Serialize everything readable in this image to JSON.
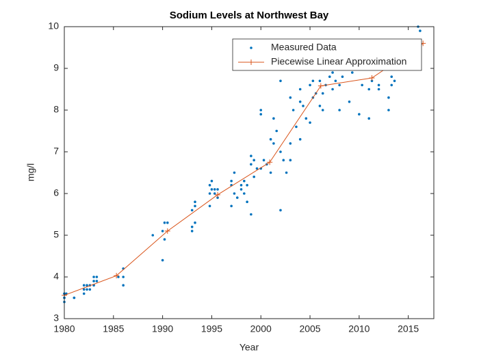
{
  "chart_data": {
    "type": "scatter",
    "title": "Sodium Levels at Northwest Bay",
    "xlabel": "Year",
    "ylabel": "mg/l",
    "xlim": [
      1980,
      2017.6
    ],
    "xticks": [
      1980,
      1985,
      1990,
      1995,
      2000,
      2005,
      2010,
      2015
    ],
    "ylim": [
      3,
      10
    ],
    "yticks": [
      3,
      4,
      5,
      6,
      7,
      8,
      9,
      10
    ],
    "legend": "top-right",
    "box": true,
    "series": [
      {
        "name": "Measured Data",
        "color": "#0072BD",
        "mode": "markers",
        "x": [
          1980,
          1980,
          1980,
          1980,
          1980,
          1980.2,
          1981,
          1981,
          1982,
          1982,
          1982,
          1982.3,
          1982.3,
          1982.6,
          1982.6,
          1983,
          1983,
          1983,
          1983.3,
          1983.3,
          1985.5,
          1986,
          1986,
          1986,
          1989,
          1990,
          1990,
          1990.2,
          1990.2,
          1990.5,
          1993,
          1993,
          1993,
          1993.3,
          1993.3,
          1993.3,
          1994.8,
          1994.8,
          1994.8,
          1995,
          1995,
          1995.3,
          1995.3,
          1995.6,
          1995.6,
          1997,
          1997,
          1997,
          1997.3,
          1997.3,
          1997.6,
          1998,
          1998,
          1998.3,
          1998.3,
          1998.6,
          1998.6,
          1999,
          1999,
          1999,
          1999.3,
          1999.3,
          1999.6,
          2000,
          2000,
          2000,
          2000.3,
          2000.6,
          2001,
          2001,
          2001.3,
          2001.3,
          2001.6,
          2002,
          2002,
          2002,
          2002.3,
          2002.6,
          2003,
          2003,
          2003,
          2003.3,
          2003.6,
          2004,
          2004,
          2004,
          2004.3,
          2004.6,
          2005,
          2005,
          2005.3,
          2005.3,
          2005.6,
          2006,
          2006,
          2006.3,
          2006.3,
          2006.6,
          2007,
          2007,
          2007.3,
          2007.3,
          2007.6,
          2008,
          2008,
          2008.3,
          2008.3,
          2009,
          2009,
          2009.3,
          2010,
          2010,
          2010.3,
          2011,
          2011,
          2011.3,
          2012,
          2012,
          2013,
          2013,
          2013.3,
          2013.3,
          2013.6,
          2016,
          2016.2
        ],
        "values": [
          3.6,
          3.5,
          3.4,
          3.6,
          3.5,
          3.6,
          3.5,
          3.5,
          3.8,
          3.7,
          3.6,
          3.8,
          3.7,
          3.8,
          3.7,
          3.9,
          4.0,
          3.8,
          4.0,
          3.9,
          4.0,
          4.2,
          4.0,
          3.8,
          5.0,
          4.4,
          5.1,
          5.3,
          4.9,
          5.3,
          5.1,
          5.2,
          5.6,
          5.7,
          5.8,
          5.3,
          5.7,
          6.0,
          6.2,
          6.3,
          6.1,
          6.1,
          6.0,
          5.9,
          6.1,
          5.7,
          6.2,
          6.3,
          6.5,
          6.0,
          5.9,
          6.1,
          6.2,
          6.3,
          6.0,
          5.8,
          6.2,
          5.5,
          6.7,
          6.9,
          6.4,
          6.8,
          6.6,
          7.9,
          8.0,
          6.6,
          6.8,
          6.7,
          7.3,
          6.5,
          7.2,
          7.8,
          7.5,
          8.7,
          7.0,
          5.6,
          6.8,
          6.5,
          8.3,
          7.2,
          6.8,
          8.0,
          7.6,
          8.5,
          8.2,
          7.3,
          8.1,
          7.8,
          8.6,
          7.7,
          8.7,
          8.3,
          8.4,
          8.7,
          8.1,
          8.0,
          8.4,
          8.6,
          9.0,
          8.8,
          8.9,
          8.5,
          8.7,
          8.0,
          8.6,
          9.0,
          8.8,
          8.2,
          9.0,
          8.9,
          9.0,
          7.9,
          8.6,
          7.8,
          8.5,
          8.7,
          8.6,
          8.5,
          8.0,
          8.3,
          8.6,
          8.8,
          8.7,
          10.0,
          9.9
        ]
      },
      {
        "name": "Piecewise Linear Approximation",
        "color": "#D95319",
        "mode": "lines+markers",
        "x": [
          1980,
          1985.3,
          1990.5,
          1995.6,
          2000.9,
          2006.1,
          2011.3,
          2016.5
        ],
        "values": [
          3.56,
          4.03,
          5.1,
          5.97,
          6.75,
          8.58,
          8.77,
          9.6
        ]
      }
    ]
  }
}
